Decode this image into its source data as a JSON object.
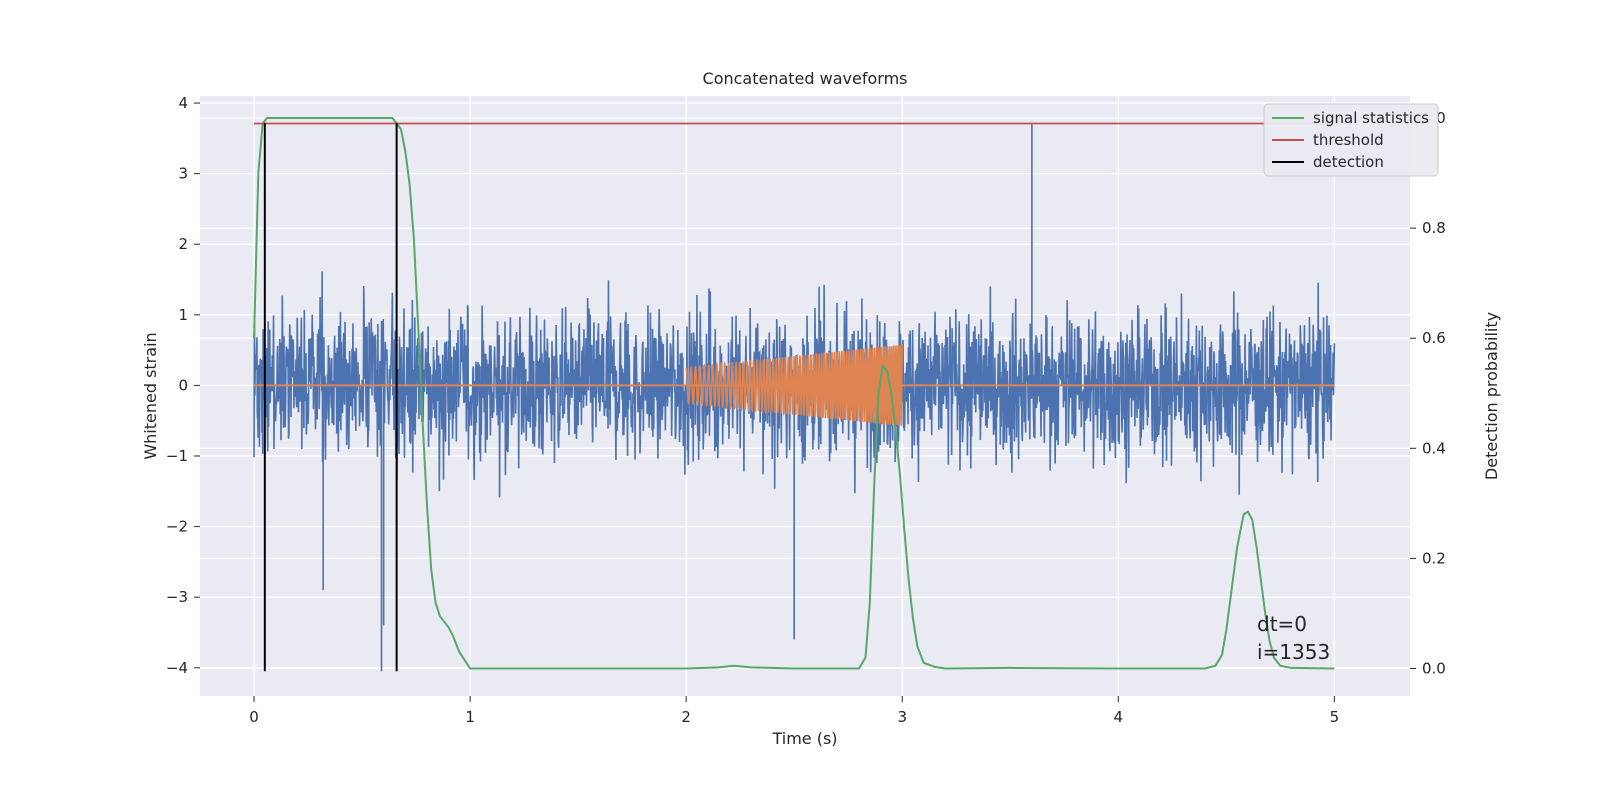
{
  "chart_data": {
    "type": "line",
    "title": "Concatenated waveforms",
    "xlabel": "Time (s)",
    "ylabel": "Whitened strain",
    "y2label": "Detection probability",
    "xlim": [
      -0.25,
      5.35
    ],
    "ylim": [
      -4.4,
      4.1
    ],
    "y2lim": [
      -0.05,
      1.04
    ],
    "x_ticks": [
      0,
      1,
      2,
      3,
      4,
      5
    ],
    "y_ticks": [
      -4,
      -3,
      -2,
      -1,
      0,
      1,
      2,
      3,
      4
    ],
    "y2_ticks": [
      0.0,
      0.2,
      0.4,
      0.6,
      0.8,
      1.0
    ],
    "grid": true,
    "legend_position": "top-right",
    "colors": {
      "noise": "#4c72b0",
      "template": "#dd8452",
      "signal_statistics": "#55a868",
      "threshold": "#c44e52",
      "detection": "#000000",
      "background": "#eaeaf2",
      "grid": "#ffffff"
    },
    "series": [
      {
        "name": "signal statistics",
        "axis": "right",
        "x": [
          0.0,
          0.02,
          0.04,
          0.06,
          0.08,
          0.1,
          0.2,
          0.3,
          0.4,
          0.5,
          0.6,
          0.64,
          0.66,
          0.68,
          0.7,
          0.72,
          0.74,
          0.76,
          0.78,
          0.8,
          0.82,
          0.84,
          0.86,
          0.88,
          0.9,
          0.92,
          0.95,
          1.0,
          1.5,
          2.0,
          2.15,
          2.22,
          2.3,
          2.5,
          2.8,
          2.83,
          2.85,
          2.87,
          2.89,
          2.91,
          2.93,
          2.95,
          2.97,
          2.99,
          3.01,
          3.03,
          3.05,
          3.07,
          3.1,
          3.15,
          3.2,
          3.5,
          4.0,
          4.4,
          4.45,
          4.48,
          4.5,
          4.52,
          4.55,
          4.58,
          4.6,
          4.62,
          4.64,
          4.66,
          4.68,
          4.7,
          4.72,
          4.75,
          4.8,
          5.0
        ],
        "values": [
          0.6,
          0.9,
          0.99,
          1.0,
          1.0,
          1.0,
          1.0,
          1.0,
          1.0,
          1.0,
          1.0,
          1.0,
          0.99,
          0.98,
          0.94,
          0.88,
          0.78,
          0.62,
          0.45,
          0.3,
          0.18,
          0.12,
          0.095,
          0.085,
          0.075,
          0.06,
          0.03,
          0.0,
          0.0,
          0.0,
          0.002,
          0.005,
          0.002,
          0.0,
          0.0,
          0.02,
          0.12,
          0.33,
          0.5,
          0.55,
          0.54,
          0.5,
          0.43,
          0.35,
          0.25,
          0.16,
          0.09,
          0.04,
          0.01,
          0.003,
          0.0,
          0.001,
          0.0,
          0.0,
          0.005,
          0.025,
          0.07,
          0.13,
          0.22,
          0.28,
          0.285,
          0.27,
          0.22,
          0.16,
          0.1,
          0.05,
          0.02,
          0.005,
          0.001,
          0.0
        ]
      },
      {
        "name": "threshold",
        "axis": "right",
        "x": [
          0.0,
          5.0
        ],
        "values": [
          0.99,
          0.99
        ]
      },
      {
        "name": "detection",
        "axis": "left",
        "segments": [
          {
            "x": 0.05,
            "y_from": -4.05,
            "y_to": 3.72
          },
          {
            "x": 0.66,
            "y_from": -4.05,
            "y_to": 3.72
          }
        ]
      }
    ],
    "noise": {
      "axis": "left",
      "x_range": [
        0.0,
        5.0
      ],
      "typical_amplitude": 1.3,
      "max": 3.72,
      "min": -4.05
    },
    "template": {
      "axis": "left",
      "x_range": [
        2.0,
        3.0
      ],
      "amplitude_start": 0.25,
      "amplitude_end": 0.58
    },
    "annotations": [
      "dt=0",
      "i=1353"
    ]
  }
}
